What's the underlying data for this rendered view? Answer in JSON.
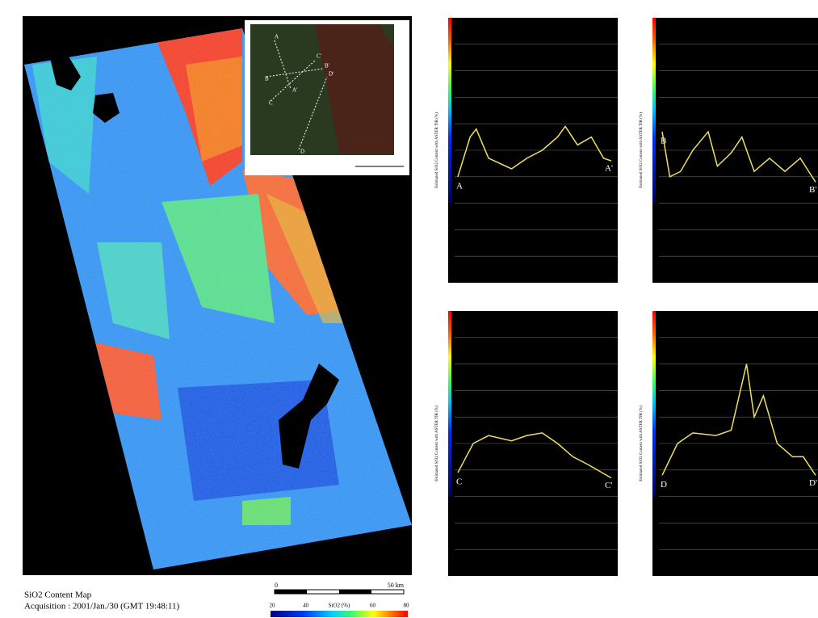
{
  "map": {
    "title": "SiO2 Content Map",
    "acquisition": "Acquisition : 2001/Jan./30 (GMT 19:48:11)",
    "scale": {
      "start": "0",
      "end": "50 km"
    },
    "colorbar": {
      "labels": [
        "20",
        "40",
        "SiO2 (%)",
        "60",
        "80"
      ]
    }
  },
  "profiles": [
    {
      "start": "A",
      "end": "A'",
      "axis_label": "Estimated SiO2 Content with ASTER TIR (%)"
    },
    {
      "start": "B",
      "end": "B'",
      "axis_label": "Estimated SiO2 Content with ASTER TIR (%)"
    },
    {
      "start": "C",
      "end": "C'",
      "axis_label": "Estimated SiO2 Content with ASTER TIR (%)"
    },
    {
      "start": "D",
      "end": "D'",
      "axis_label": "Estimated SiO2 Content with ASTER TIR (%)"
    }
  ]
}
